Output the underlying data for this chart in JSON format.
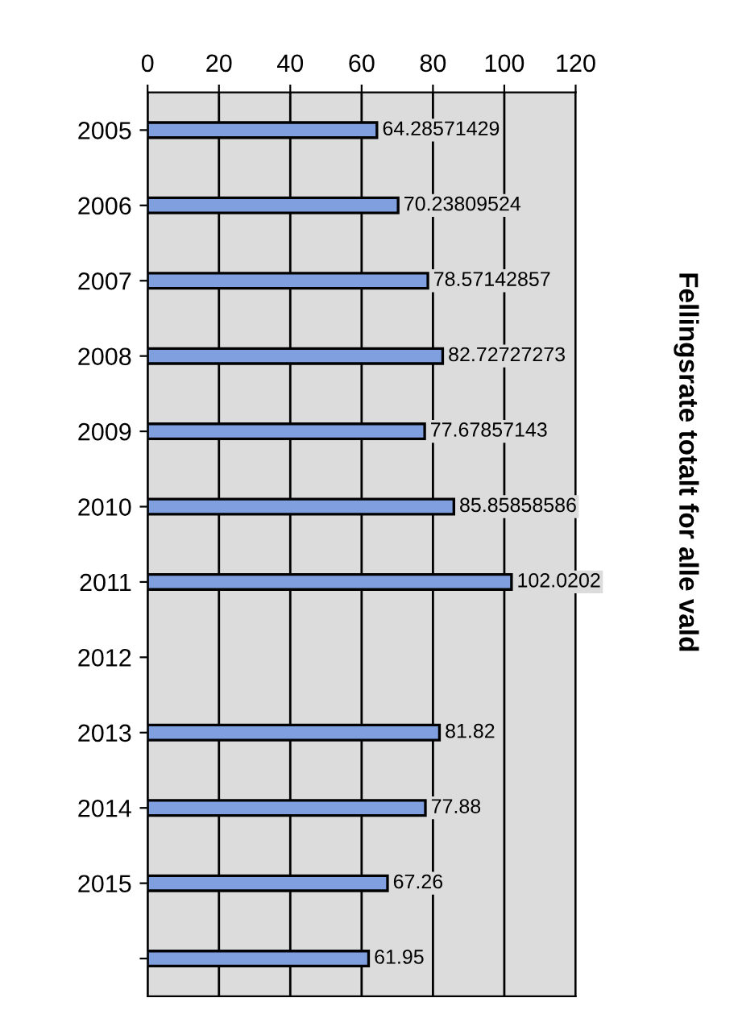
{
  "chart_data": {
    "type": "bar",
    "orientation": "horizontal",
    "title": "Fellingsrate totalt for alle vald",
    "categories": [
      "2005",
      "2006",
      "2007",
      "2008",
      "2009",
      "2010",
      "2011",
      "2012",
      "2013",
      "2014",
      "2015",
      null
    ],
    "values": [
      64.28571429,
      70.23809524,
      78.57142857,
      82.72727273,
      77.67857143,
      85.85858586,
      102.020202,
      null,
      81.82,
      77.88,
      67.26,
      61.95
    ],
    "value_labels": [
      "64.28571429",
      "70.23809524",
      "78.57142857",
      "82.72727273",
      "77.67857143",
      "85.85858586",
      "102.0202",
      null,
      "81.82",
      "77.88",
      "67.26",
      "61.95"
    ],
    "color": "#7f9fdf",
    "xlim": [
      0,
      120
    ],
    "xticks": [
      0,
      20,
      40,
      60,
      80,
      100,
      120
    ],
    "grid": "x"
  }
}
